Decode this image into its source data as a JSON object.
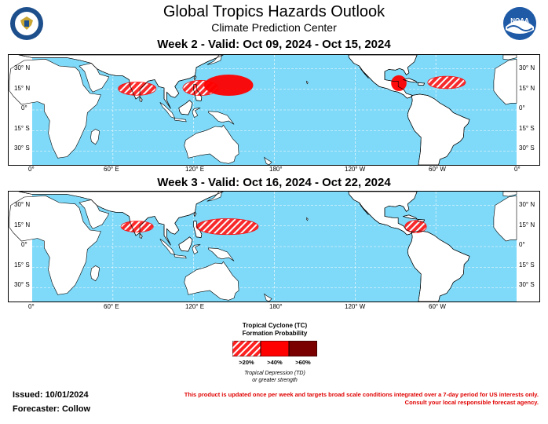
{
  "header": {
    "title": "Global Tropics Hazards Outlook",
    "subtitle": "Climate Prediction Center"
  },
  "logos": {
    "left": "doc-seal-icon",
    "right": "noaa-logo-icon",
    "right_text": "NOAA"
  },
  "maps": [
    {
      "title": "Week 2 - Valid: Oct 09, 2024 - Oct 15, 2024"
    },
    {
      "title": "Week 3 - Valid: Oct 16, 2024 - Oct 22, 2024"
    }
  ],
  "axes": {
    "lat_labels_left": [
      "30° N",
      "15° N",
      "0°",
      "15° S",
      "30° S"
    ],
    "lat_labels_right": [
      "30° N",
      "15° N",
      "0°",
      "15° S",
      "30° S"
    ],
    "lon_labels": [
      "0°",
      "60° E",
      "120° E",
      "180°",
      "120° W",
      "60° W",
      "0°"
    ]
  },
  "legend": {
    "title_line1": "Tropical Cyclone (TC)",
    "title_line2": "Formation Probability",
    "labels": [
      ">20%",
      ">40%",
      ">60%"
    ],
    "note_line1": "Tropical Depression (TD)",
    "note_line2": "or greater strength"
  },
  "colors": {
    "ocean": "#7fd9f8",
    "land": "#ffffff",
    "hazard_20": "#ff2020",
    "hazard_40": "#ff0000",
    "hazard_60": "#7a0000",
    "disclaimer": "#e00000"
  },
  "footer": {
    "issued": "Issued: 10/01/2024",
    "forecaster": "Forecaster: Collow",
    "disclaimer_line1": "This product is updated once per week and targets broad scale conditions integrated over a 7-day period for US interests only.",
    "disclaimer_line2": "Consult your local responsible forecast agency."
  }
}
